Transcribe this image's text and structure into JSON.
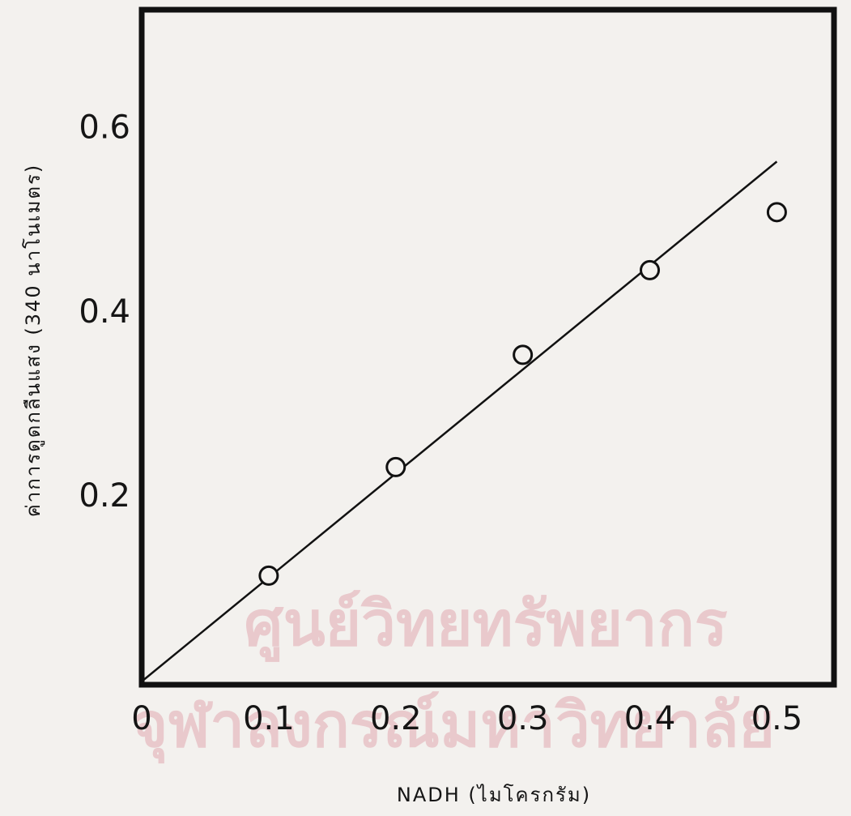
{
  "chart_data": {
    "type": "scatter",
    "x_label": "NADH  (ไมโครกรัม)",
    "y_label": "ค่าการดูดกลืนแสง (340 นาโนเมตร)",
    "watermark": [
      "ศูนย์วิทยทรัพยากร",
      "จุฬาลงกรณ์มหาวิทยาลัย"
    ],
    "x": [
      0.1,
      0.2,
      0.3,
      0.4,
      0.5
    ],
    "values": [
      0.115,
      0.233,
      0.355,
      0.447,
      0.51
    ],
    "fit_line": {
      "x": [
        0,
        0.5
      ],
      "values": [
        0,
        0.565
      ]
    },
    "color": "#111111",
    "xlim": [
      0,
      0.545
    ],
    "ylim": [
      0,
      0.73
    ],
    "xticks": [
      0,
      0.1,
      0.2,
      0.3,
      0.4,
      0.5
    ],
    "yticks": [
      0.2,
      0.4,
      0.6
    ],
    "grid": false
  }
}
